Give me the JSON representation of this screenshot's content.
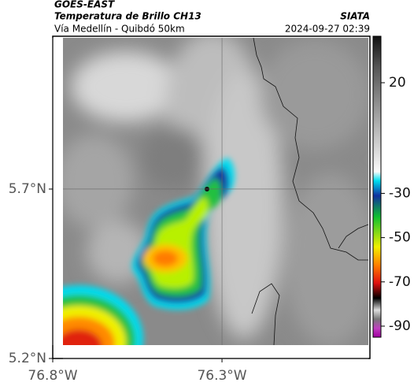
{
  "header": {
    "title": "GOES-EAST",
    "subtitle": "Temperatura de Brillo CH13",
    "source": "SIATA",
    "route": "Vía Medellín - Quibdó 50km",
    "timestamp": "2024-09-27 02:39"
  },
  "map": {
    "xlim": [
      -76.8,
      -75.863
    ],
    "ylim": [
      5.2,
      6.151
    ],
    "xticks": [
      {
        "value": -76.8,
        "label": "76.8°W"
      },
      {
        "value": -76.3,
        "label": "76.3°W"
      }
    ],
    "yticks": [
      {
        "value": 5.7,
        "label": "5.7°N"
      },
      {
        "value": 5.2,
        "label": "5.2°N"
      }
    ],
    "grid": true
  },
  "colorbar": {
    "vlim": [
      41,
      -95
    ],
    "ticks": [
      20,
      -30,
      -50,
      -70,
      -90
    ]
  }
}
